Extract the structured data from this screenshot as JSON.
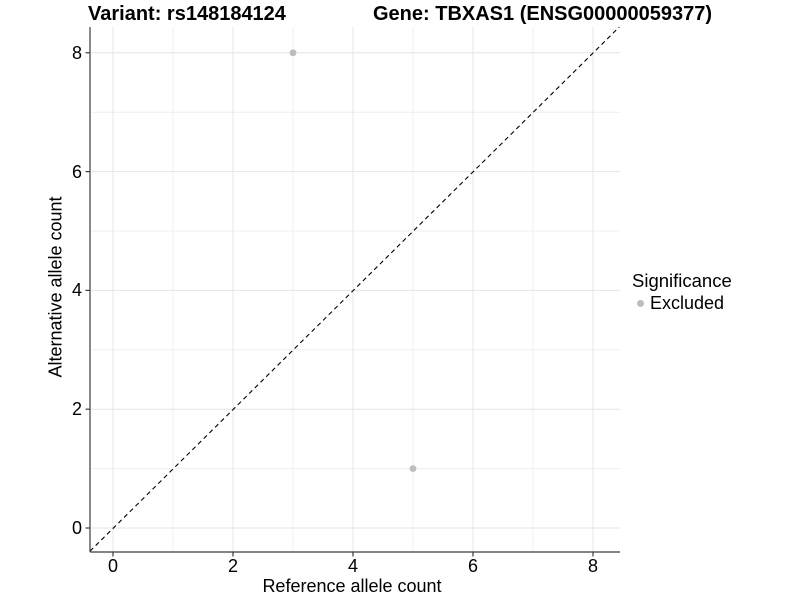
{
  "header": {
    "title_variant": "Variant: rs148184124",
    "title_gene": "Gene: TBXAS1 (ENSG00000059377)"
  },
  "legend": {
    "title": "Significance",
    "items": [
      {
        "label": "Excluded",
        "color": "#bdbdbd"
      }
    ]
  },
  "chart_data": {
    "type": "scatter",
    "title_left": "Variant: rs148184124",
    "title_right": "Gene: TBXAS1 (ENSG00000059377)",
    "xlabel": "Reference allele count",
    "ylabel": "Alternative allele count",
    "xlim": [
      -0.45,
      8.45
    ],
    "ylim": [
      -0.43,
      8.43
    ],
    "x_ticks": [
      0,
      2,
      4,
      6,
      8
    ],
    "y_ticks": [
      0,
      2,
      4,
      6,
      8
    ],
    "x_minor": [
      1,
      3,
      5,
      7
    ],
    "y_minor": [
      1,
      3,
      5,
      7
    ],
    "grid": "major and minor gridlines on white background",
    "legend_position": "right",
    "reference_line": {
      "kind": "identity y=x",
      "linetype": "dashed",
      "color": "#000000"
    },
    "series": [
      {
        "name": "Excluded",
        "color": "#bdbdbd",
        "points": [
          [
            3,
            8
          ],
          [
            5,
            1
          ]
        ]
      }
    ]
  },
  "colors": {
    "background": "#ffffff",
    "grid_major": "#e4e4e4",
    "grid_minor": "#efefef",
    "axis_line": "#3c3c3c",
    "text": "#000000",
    "excluded_point": "#bdbdbd"
  }
}
